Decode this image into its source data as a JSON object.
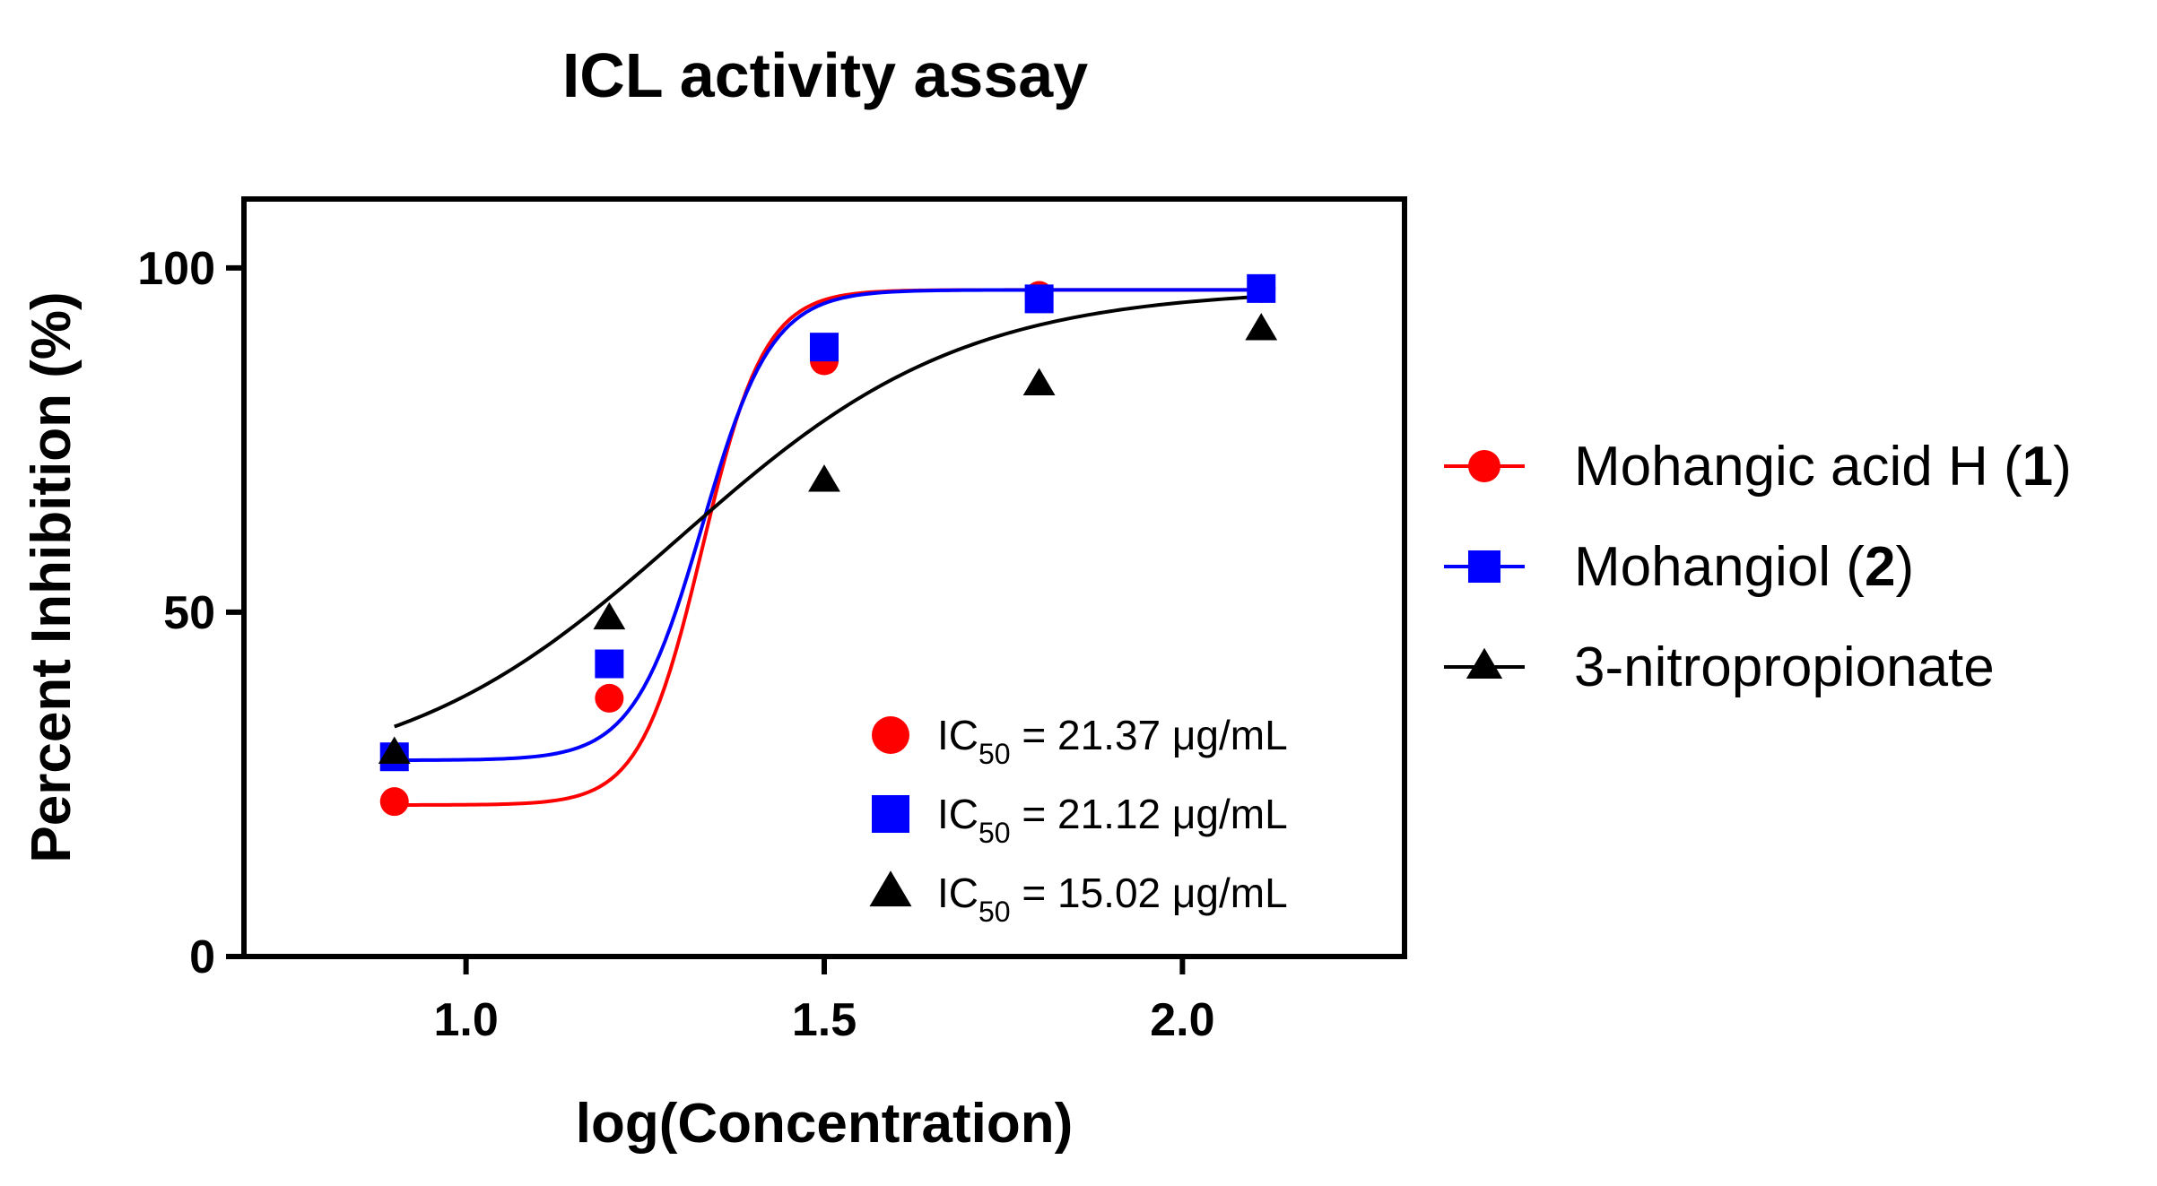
{
  "chart_data": {
    "type": "line",
    "title": "ICL activity assay",
    "xlabel": "log(Concentration)",
    "ylabel": "Percent Inhibition (%)",
    "xlim": [
      0.69,
      2.31
    ],
    "ylim": [
      0,
      110
    ],
    "xticks": [
      1.0,
      1.5,
      2.0
    ],
    "xtick_labels": [
      "1.0",
      "1.5",
      "2.0"
    ],
    "yticks": [
      0,
      50,
      100
    ],
    "ytick_labels": [
      "0",
      "50",
      "100"
    ],
    "grid": false,
    "legend_position": "right",
    "series": [
      {
        "name_prefix": "Mohangic acid H (",
        "name_bold": "1",
        "name_suffix": ")",
        "color": "#ff0000",
        "marker": "circle",
        "x": [
          0.9,
          1.2,
          1.5,
          1.8,
          2.11
        ],
        "y": [
          22.5,
          37.5,
          86.5,
          96.0,
          97.0
        ],
        "fit": {
          "bottom": 22.0,
          "top": 96.8,
          "logEC50": 1.33,
          "hill": 10.0
        }
      },
      {
        "name_prefix": "Mohangiol (",
        "name_bold": "2",
        "name_suffix": ")",
        "color": "#0000ff",
        "marker": "square",
        "x": [
          0.9,
          1.2,
          1.5,
          1.8,
          2.11
        ],
        "y": [
          29.0,
          42.5,
          88.5,
          95.5,
          97.0
        ],
        "fit": {
          "bottom": 28.5,
          "top": 96.8,
          "logEC50": 1.33,
          "hill": 9.0
        }
      },
      {
        "name_prefix": "3-nitropropionate",
        "name_bold": "",
        "name_suffix": "",
        "color": "#000000",
        "marker": "triangle",
        "x": [
          0.9,
          1.2,
          1.5,
          1.8,
          2.11
        ],
        "y": [
          29.5,
          49.0,
          69.0,
          83.0,
          91.0
        ],
        "fit": {
          "bottom": 25.0,
          "top": 97.0,
          "logEC50": 1.3,
          "hill": 2.2
        }
      }
    ],
    "annotations": [
      {
        "marker": "circle",
        "color": "#ff0000",
        "prefix": "IC",
        "sub": "50",
        "value": " = 21.37 μg/mL"
      },
      {
        "marker": "square",
        "color": "#0000ff",
        "prefix": "IC",
        "sub": "50",
        "value": " = 21.12 μg/mL"
      },
      {
        "marker": "triangle",
        "color": "#000000",
        "prefix": "IC",
        "sub": "50",
        "value": " = 15.02 μg/mL"
      }
    ]
  }
}
